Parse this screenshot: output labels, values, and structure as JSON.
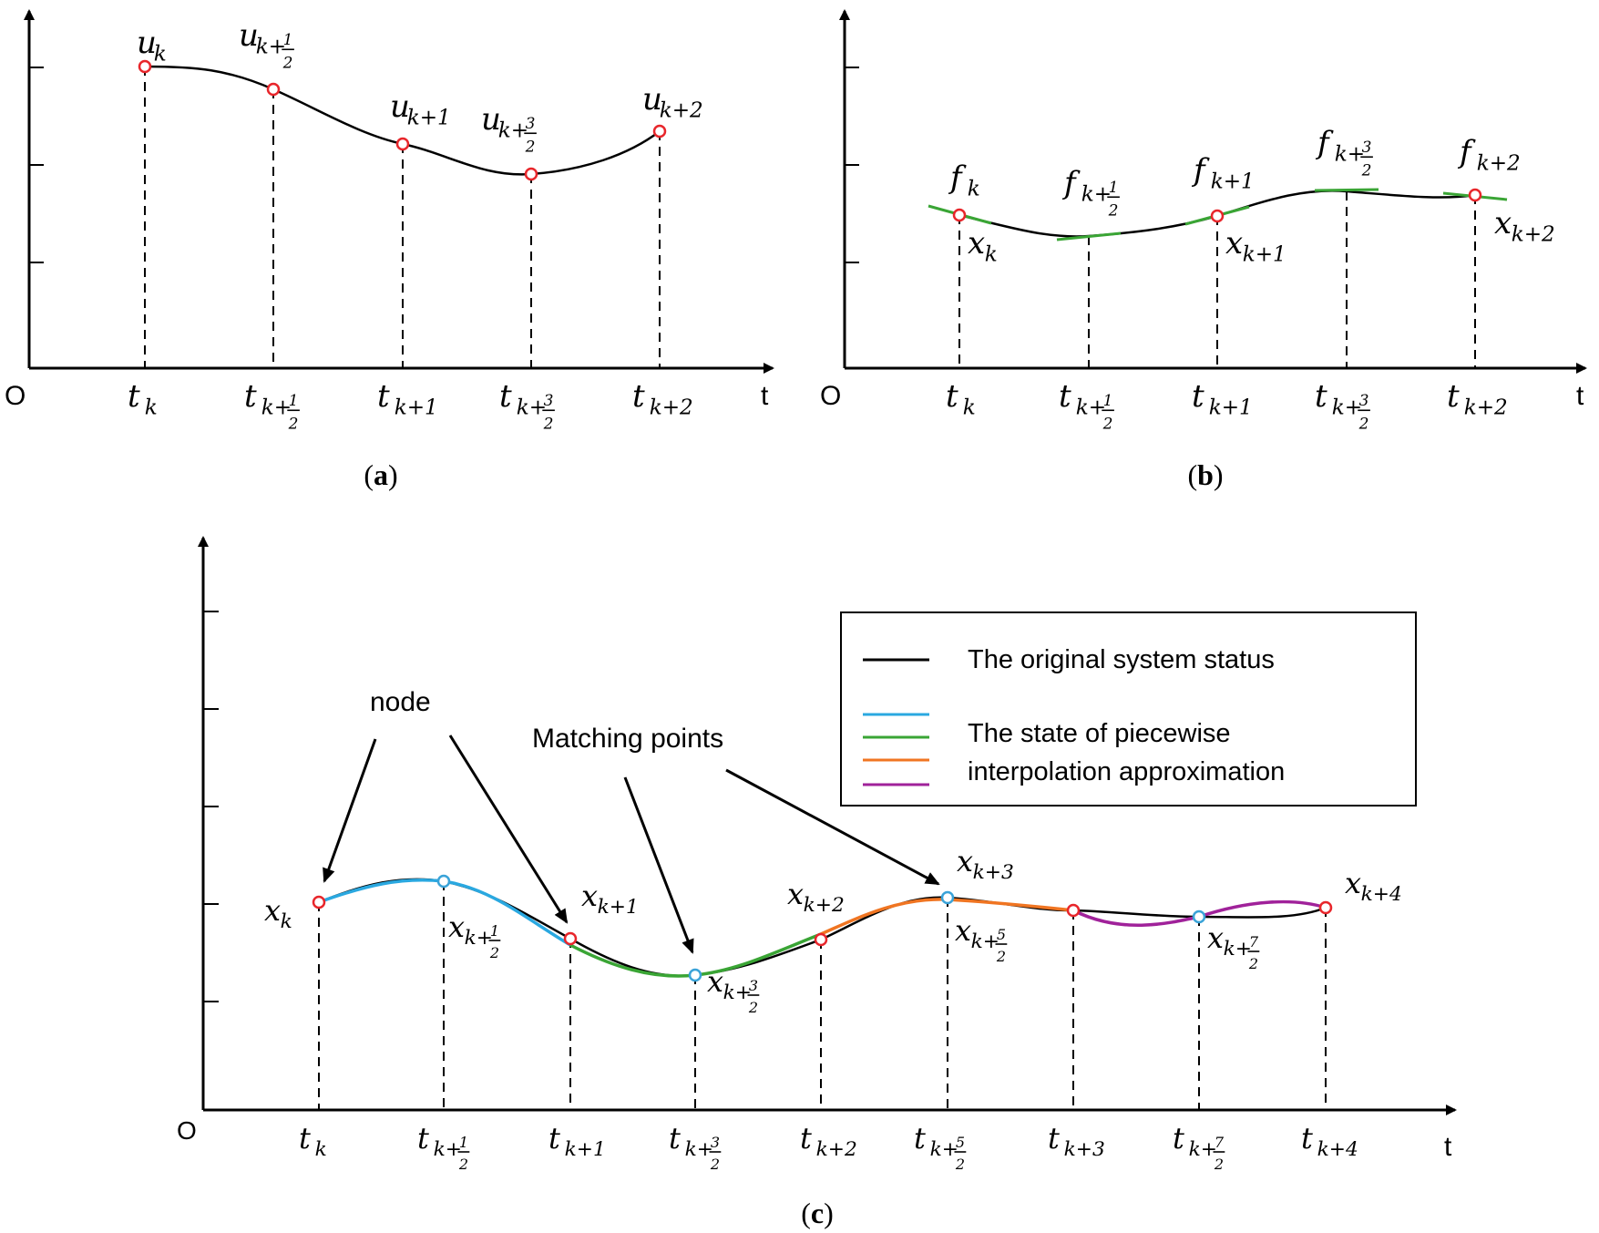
{
  "colors": {
    "black": "#000000",
    "node": "#e8262b",
    "matching": "#3aa3d8",
    "blue": "#2aa8e0",
    "green": "#3aa535",
    "orange": "#f07522",
    "purple": "#a0229a",
    "tangent": "#3aa535"
  },
  "panel_a": {
    "caption_open": "(",
    "caption_letter": "a",
    "caption_close": ")",
    "origin": "O",
    "axis_t": "t",
    "points": [
      {
        "base": "u",
        "sub": "k"
      },
      {
        "base": "u",
        "sub": "k+",
        "frac": [
          "1",
          "2"
        ]
      },
      {
        "base": "u",
        "sub": "k+1"
      },
      {
        "base": "u",
        "sub": "k+",
        "frac": [
          "3",
          "2"
        ]
      },
      {
        "base": "u",
        "sub": "k+2"
      }
    ],
    "ticks": [
      {
        "base": "t",
        "sub": "k"
      },
      {
        "base": "t",
        "sub": "k+",
        "frac": [
          "1",
          "2"
        ]
      },
      {
        "base": "t",
        "sub": "k+1"
      },
      {
        "base": "t",
        "sub": "k+",
        "frac": [
          "3",
          "2"
        ]
      },
      {
        "base": "t",
        "sub": "k+2"
      }
    ]
  },
  "panel_b": {
    "caption_open": "(",
    "caption_letter": "b",
    "caption_close": ")",
    "origin": "O",
    "axis_t": "t",
    "f_labels": [
      {
        "base": "f",
        "sub": "k"
      },
      {
        "base": "f",
        "sub": "k+",
        "frac": [
          "1",
          "2"
        ]
      },
      {
        "base": "f",
        "sub": "k+1"
      },
      {
        "base": "f",
        "sub": "k+",
        "frac": [
          "3",
          "2"
        ]
      },
      {
        "base": "f",
        "sub": "k+2"
      }
    ],
    "x_labels": [
      {
        "base": "x",
        "sub": "k"
      },
      {
        "base": "x",
        "sub": "k+1"
      },
      {
        "base": "x",
        "sub": "k+2"
      }
    ],
    "ticks": [
      {
        "base": "t",
        "sub": "k"
      },
      {
        "base": "t",
        "sub": "k+",
        "frac": [
          "1",
          "2"
        ]
      },
      {
        "base": "t",
        "sub": "k+1"
      },
      {
        "base": "t",
        "sub": "k+",
        "frac": [
          "3",
          "2"
        ]
      },
      {
        "base": "t",
        "sub": "k+2"
      }
    ]
  },
  "panel_c": {
    "caption_open": "(",
    "caption_letter": "c",
    "caption_close": ")",
    "origin": "O",
    "axis_t": "t",
    "legend": {
      "original": "The original system status",
      "approx_line1": "The state of piecewise",
      "approx_line2": "interpolation approximation"
    },
    "annotations": {
      "node": "node",
      "matching": "Matching points"
    },
    "x_labels": [
      {
        "base": "x",
        "sub": "k"
      },
      {
        "base": "x",
        "sub": "k+",
        "frac": [
          "1",
          "2"
        ]
      },
      {
        "base": "x",
        "sub": "k+1"
      },
      {
        "base": "x",
        "sub": "k+",
        "frac": [
          "3",
          "2"
        ]
      },
      {
        "base": "x",
        "sub": "k+2"
      },
      {
        "base": "x",
        "sub": "k+",
        "frac": [
          "5",
          "2"
        ]
      },
      {
        "base": "x",
        "sub": "k+3"
      },
      {
        "base": "x",
        "sub": "k+",
        "frac": [
          "7",
          "2"
        ]
      },
      {
        "base": "x",
        "sub": "k+4"
      }
    ],
    "ticks": [
      {
        "base": "t",
        "sub": "k"
      },
      {
        "base": "t",
        "sub": "k+",
        "frac": [
          "1",
          "2"
        ]
      },
      {
        "base": "t",
        "sub": "k+1"
      },
      {
        "base": "t",
        "sub": "k+",
        "frac": [
          "3",
          "2"
        ]
      },
      {
        "base": "t",
        "sub": "k+2"
      },
      {
        "base": "t",
        "sub": "k+",
        "frac": [
          "5",
          "2"
        ]
      },
      {
        "base": "t",
        "sub": "k+3"
      },
      {
        "base": "t",
        "sub": "k+",
        "frac": [
          "7",
          "2"
        ]
      },
      {
        "base": "t",
        "sub": "k+4"
      }
    ]
  }
}
